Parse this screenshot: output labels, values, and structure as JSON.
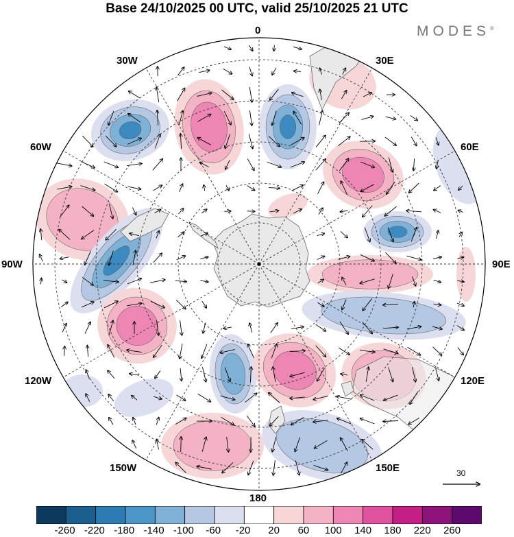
{
  "title": "Base 24/10/2025 00 UTC, valid 25/10/2025 21 UTC",
  "logo": "MODES",
  "logo_mark": "®",
  "lon_labels": {
    "n0": "0",
    "n30e": "30E",
    "n60e": "60E",
    "n90e": "90E",
    "n120e": "120E",
    "n150e": "150E",
    "n180": "180",
    "n150w": "150W",
    "n120w": "120W",
    "n90w": "90W",
    "n60w": "60W",
    "n30w": "30W"
  },
  "reference_vector": {
    "value": "30"
  },
  "colorbar": {
    "ticks": [
      "-260",
      "-220",
      "-180",
      "-140",
      "-100",
      "-60",
      "-20",
      "20",
      "60",
      "100",
      "140",
      "180",
      "220",
      "260"
    ],
    "colors": [
      "#0b3a5e",
      "#1b5f8e",
      "#2c7bb3",
      "#4b96c6",
      "#7fb1d6",
      "#b4c8e3",
      "#dcdff0",
      "#ffffff",
      "#f7d6d8",
      "#f4b3c4",
      "#ee86b4",
      "#e0529e",
      "#c41f87",
      "#8d1279",
      "#5d0a6e"
    ]
  },
  "map_colors": {
    "land": "#e9e9e9",
    "coast": "#666666",
    "grid": "#333333",
    "neg_light": "#dcdff0",
    "neg_mid": "#b4c8e3",
    "neg_strong": "#7fb1d6",
    "neg_core": "#3d8ac0",
    "pos_light": "#f7d6d8",
    "pos_mid": "#f4b3c4",
    "pos_strong": "#ee86b4",
    "pos_core": "#e0529e"
  }
}
